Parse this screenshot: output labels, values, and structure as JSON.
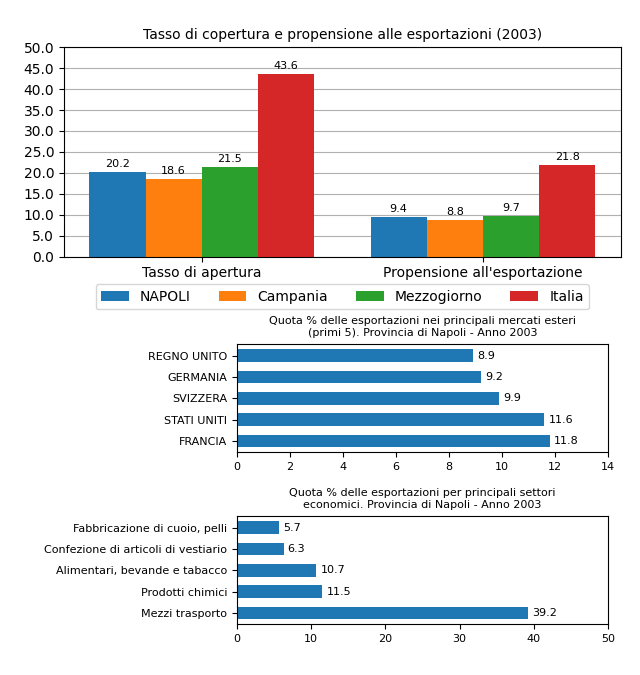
{
  "chart_data": [
    {
      "type": "bar",
      "title": "Tasso di copertura e propensione alle esportazioni (2003)",
      "categories": [
        "Tasso di apertura",
        "Propensione all'esportazione"
      ],
      "series": [
        {
          "name": "NAPOLI",
          "values": [
            20.2,
            9.4
          ]
        },
        {
          "name": "Campania",
          "values": [
            18.6,
            8.8
          ]
        },
        {
          "name": "Mezzogiorno",
          "values": [
            21.5,
            9.7
          ]
        },
        {
          "name": "Italia",
          "values": [
            43.6,
            21.8
          ]
        }
      ],
      "ylim": [
        0,
        50
      ],
      "yticks": [
        {
          "value": 0.0,
          "label": "0.0"
        },
        {
          "value": 5.0,
          "label": "5.0"
        },
        {
          "value": 10.0,
          "label": "10.0"
        },
        {
          "value": 15.0,
          "label": "15.0"
        },
        {
          "value": 20.0,
          "label": "20.0"
        },
        {
          "value": 25.0,
          "label": "25.0"
        },
        {
          "value": 30.0,
          "label": "30.0"
        },
        {
          "value": 35.0,
          "label": "35.0"
        },
        {
          "value": 40.0,
          "label": "40.0"
        },
        {
          "value": 45.0,
          "label": "45.0"
        },
        {
          "value": 50.0,
          "label": "50.0"
        }
      ],
      "grid": true,
      "legend": "upper center",
      "data_labels": true
    },
    {
      "type": "bar",
      "orientation": "horizontal",
      "title": "Quota % delle esportazioni nei principali mercati esteri\n(primi 5). Provincia di Napoli - Anno 2003",
      "categories": [
        "REGNO UNITO",
        "GERMANIA",
        "SVIZZERA",
        "STATI UNITI",
        "FRANCIA"
      ],
      "values": [
        8.9,
        9.2,
        9.9,
        11.6,
        11.8
      ],
      "xlim": [
        0,
        14
      ],
      "xticks": [
        0,
        2,
        4,
        6,
        8,
        10,
        12,
        14
      ],
      "grid": false,
      "data_labels": true
    },
    {
      "type": "bar",
      "orientation": "horizontal",
      "title": "Quota % delle esportazioni per principali settori\neconomici. Provincia di Napoli - Anno 2003",
      "categories": [
        "Fabbricazione di cuoio, pelli",
        "Confezione di articoli di vestiario",
        "Alimentari, bevande e tabacco",
        "Prodotti chimici",
        "Mezzi trasporto"
      ],
      "values": [
        5.7,
        6.3,
        10.7,
        11.5,
        39.2
      ],
      "xlim": [
        0,
        50
      ],
      "xticks": [
        0,
        10,
        20,
        30,
        40,
        50
      ],
      "grid": false,
      "data_labels": true
    }
  ]
}
